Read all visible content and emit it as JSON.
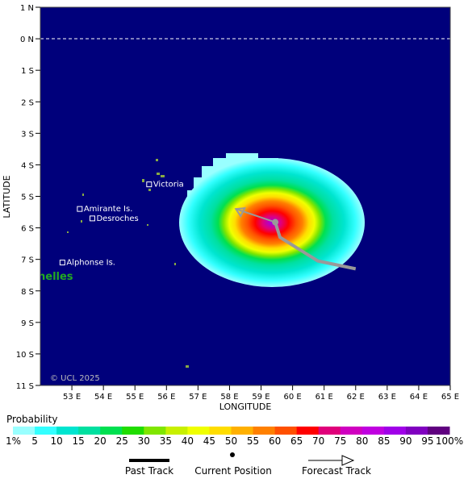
{
  "map": {
    "lat_labels": [
      "1 N",
      "0 N",
      "1 S",
      "2 S",
      "3 S",
      "4 S",
      "5 S",
      "6 S",
      "7 S",
      "8 S",
      "9 S",
      "10 S",
      "11 S"
    ],
    "lat_values": [
      1,
      0,
      -1,
      -2,
      -3,
      -4,
      -5,
      -6,
      -7,
      -8,
      -9,
      -10,
      -11
    ],
    "lon_labels": [
      "53 E",
      "54 E",
      "55 E",
      "56 E",
      "57 E",
      "58 E",
      "59 E",
      "60 E",
      "61 E",
      "62 E",
      "63 E",
      "64 E",
      "65 E"
    ],
    "lon_values": [
      53,
      54,
      55,
      56,
      57,
      58,
      59,
      60,
      61,
      62,
      63,
      64,
      65
    ],
    "x_axis_title": "LONGITUDE",
    "y_axis_title": "LATITUDE",
    "lon_range": [
      52,
      65
    ],
    "lat_range": [
      -11,
      1
    ],
    "background_color": "#00007b",
    "equator_dashed": true,
    "watermark": "© UCL 2025",
    "region_label": "nelles",
    "region_label_color": "#22aa22",
    "places": [
      {
        "name": "Victoria",
        "lon": 55.45,
        "lat": -4.62
      },
      {
        "name": "Amirante Is.",
        "lon": 53.25,
        "lat": -5.4
      },
      {
        "name": "Desroches",
        "lon": 53.65,
        "lat": -5.7
      },
      {
        "name": "Alphonse Is.",
        "lon": 52.7,
        "lat": -7.1
      }
    ],
    "storm": {
      "center_lon": 59.45,
      "center_lat": -5.9,
      "current_position": {
        "lon": 59.45,
        "lat": -5.82
      },
      "forecast_track": [
        [
          59.45,
          -5.82
        ],
        [
          58.2,
          -5.4
        ]
      ],
      "past_track": [
        [
          59.45,
          -5.82
        ],
        [
          59.6,
          -6.3
        ],
        [
          60.8,
          -7.05
        ],
        [
          62.0,
          -7.3
        ]
      ],
      "track_color": "#999999"
    }
  },
  "legend": {
    "title": "Probability",
    "labels": [
      "1%",
      "5",
      "10",
      "15",
      "20",
      "25",
      "30",
      "35",
      "40",
      "45",
      "50",
      "55",
      "60",
      "65",
      "70",
      "75",
      "80",
      "85",
      "90",
      "95",
      "100%"
    ],
    "colors": [
      "#99ffff",
      "#33ffff",
      "#00e5d0",
      "#00e0a0",
      "#00e050",
      "#20dd00",
      "#80e600",
      "#c8f000",
      "#f0ff00",
      "#ffdd00",
      "#ffb000",
      "#ff8000",
      "#ff5000",
      "#ff0000",
      "#e0007a",
      "#d000c0",
      "#c000e0",
      "#a000e8",
      "#8000c0",
      "#600080"
    ],
    "past_track_label": "Past Track",
    "current_position_label": "Current Position",
    "forecast_track_label": "Forecast Track"
  }
}
